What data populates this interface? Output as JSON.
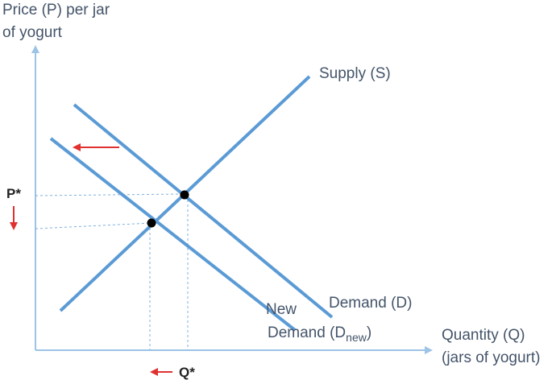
{
  "y_axis_label": [
    "Price (P) per jar",
    "of yogurt"
  ],
  "x_axis_label": [
    "Quantity (Q)",
    "(jars of yogurt)"
  ],
  "supply_label": "Supply (S)",
  "demand_label": "Demand (D)",
  "new_demand_label": {
    "line1": "New",
    "line2": "Demand (D",
    "subscript": "new",
    "close": ")"
  },
  "price_marker": "P*",
  "quantity_marker": "Q*"
}
